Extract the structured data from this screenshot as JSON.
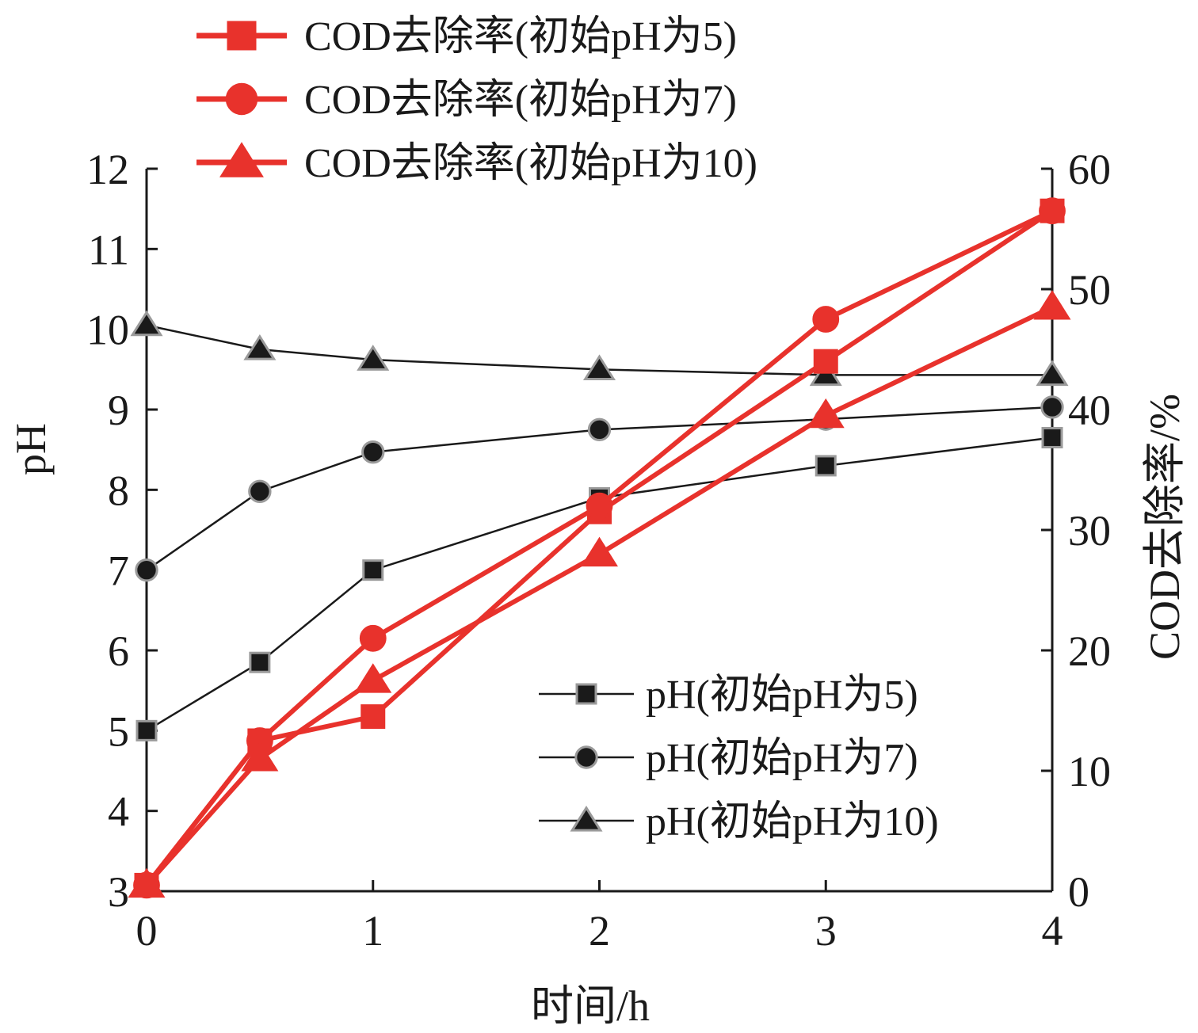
{
  "chart_data": {
    "type": "line",
    "xlabel": "时间/h",
    "ylabel_left": "pH",
    "ylabel_right": "COD去除率/%",
    "x_ticks": [
      "0",
      "1",
      "2",
      "3",
      "4"
    ],
    "y_left_ticks": [
      "3",
      "4",
      "5",
      "6",
      "7",
      "8",
      "9",
      "10",
      "11",
      "12"
    ],
    "y_right_ticks": [
      "0",
      "10",
      "20",
      "30",
      "40",
      "50",
      "60"
    ],
    "xlim": [
      0,
      4
    ],
    "ylim_left": [
      3,
      12
    ],
    "ylim_right": [
      0,
      60
    ],
    "grid": false,
    "x": [
      0,
      0.5,
      1,
      2,
      3,
      4
    ],
    "series": [
      {
        "name": "COD去除率(初始pH为5)",
        "axis": "right",
        "marker": "square",
        "color": "#e8322c",
        "values": [
          0.5,
          12.5,
          14.5,
          31.5,
          44,
          56.5
        ]
      },
      {
        "name": "COD去除率(初始pH为7)",
        "axis": "right",
        "marker": "circle",
        "color": "#e8322c",
        "values": [
          0.5,
          12.5,
          21,
          32,
          47.5,
          56.5
        ]
      },
      {
        "name": "COD去除率(初始pH为10)",
        "axis": "right",
        "marker": "triangle",
        "color": "#e8322c",
        "values": [
          0.5,
          11,
          17.5,
          28,
          39.5,
          48.5
        ]
      },
      {
        "name": "pH(初始pH为5)",
        "axis": "left",
        "marker": "square",
        "color": "#1a1a1a",
        "values": [
          5.0,
          5.85,
          7.0,
          7.9,
          8.3,
          8.65
        ]
      },
      {
        "name": "pH(初始pH为7)",
        "axis": "left",
        "marker": "circle",
        "color": "#1a1a1a",
        "values": [
          7.0,
          7.98,
          8.47,
          8.75,
          8.88,
          9.03
        ]
      },
      {
        "name": "pH(初始pH为10)",
        "axis": "left",
        "marker": "triangle",
        "color": "#1a1a1a",
        "values": [
          10.05,
          9.75,
          9.62,
          9.5,
          9.43,
          9.43
        ]
      }
    ],
    "legend_top": [
      "COD去除率(初始pH为5)",
      "COD去除率(初始pH为7)",
      "COD去除率(初始pH为10)"
    ],
    "legend_bottom": [
      "pH(初始pH为5)",
      "pH(初始pH为7)",
      "pH(初始pH为10)"
    ],
    "legend_placement_top": "top-left, above plot",
    "legend_placement_bottom": "bottom-right, inside plot"
  }
}
